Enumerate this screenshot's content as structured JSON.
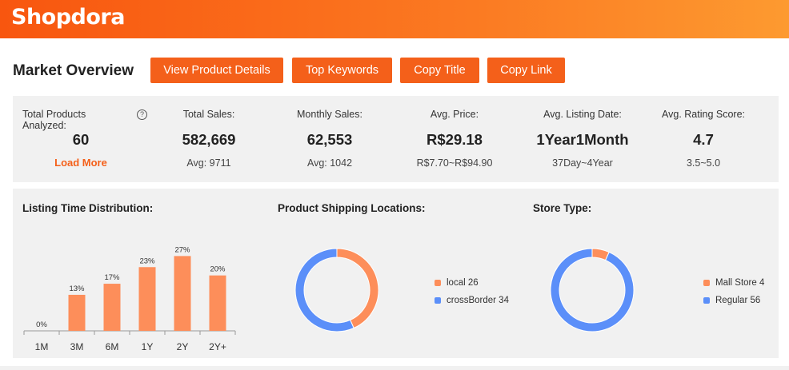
{
  "app": {
    "logo_text": "Shopdora"
  },
  "page": {
    "title": "Market Overview"
  },
  "toolbar": {
    "buttons": [
      {
        "label": "View Product Details"
      },
      {
        "label": "Top Keywords"
      },
      {
        "label": "Copy Title"
      },
      {
        "label": "Copy Link"
      }
    ]
  },
  "stats": {
    "total_products": {
      "label": "Total Products Analyzed:",
      "value": "60",
      "action": "Load More",
      "help_icon": "?"
    },
    "total_sales": {
      "label": "Total Sales:",
      "value": "582,669",
      "sub": "Avg: 9711"
    },
    "monthly_sales": {
      "label": "Monthly Sales:",
      "value": "62,553",
      "sub": "Avg: 1042"
    },
    "avg_price": {
      "label": "Avg. Price:",
      "value": "R$29.18",
      "sub": "R$7.70~R$94.90"
    },
    "avg_listing_date": {
      "label": "Avg. Listing Date:",
      "value": "1Year1Month",
      "sub": "37Day~4Year"
    },
    "avg_rating": {
      "label": "Avg. Rating Score:",
      "value": "4.7",
      "sub": "3.5~5.0"
    }
  },
  "colors": {
    "accent": "#f4601a",
    "bar": "#fd8e5a",
    "blue": "#5b8ff9",
    "panel": "#f1f1f1"
  },
  "chart_data": [
    {
      "type": "bar",
      "title": "Listing Time Distribution:",
      "categories": [
        "1M",
        "3M",
        "6M",
        "1Y",
        "2Y",
        "2Y+"
      ],
      "values": [
        0,
        13,
        17,
        23,
        27,
        20
      ],
      "value_labels": [
        "0%",
        "13%",
        "17%",
        "23%",
        "27%",
        "20%"
      ],
      "ylim": [
        0,
        30
      ],
      "grid": false
    },
    {
      "type": "pie",
      "title": "Product Shipping Locations:",
      "labels": [
        "local",
        "crossBorder"
      ],
      "values": [
        26,
        34
      ],
      "legend_labels": [
        "local 26",
        "crossBorder 34"
      ],
      "colors": [
        "#fd8e5a",
        "#5b8ff9"
      ],
      "legend_position": "right"
    },
    {
      "type": "pie",
      "title": "Store Type:",
      "labels": [
        "Mall Store",
        "Regular"
      ],
      "values": [
        4,
        56
      ],
      "legend_labels": [
        "Mall Store 4",
        "Regular 56"
      ],
      "colors": [
        "#fd8e5a",
        "#5b8ff9"
      ],
      "legend_position": "right"
    }
  ]
}
